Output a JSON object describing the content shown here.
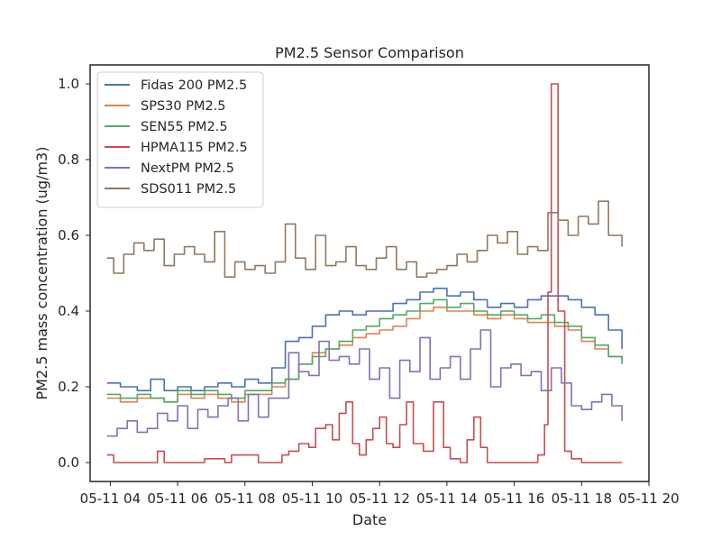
{
  "chart_data": {
    "type": "line",
    "title": "PM2.5 Sensor Comparison",
    "xlabel": "Date",
    "ylabel": "PM2.5 mass concentration (ug/m3)",
    "xlim": [
      3.4,
      20.0
    ],
    "ylim": [
      -0.05,
      1.05
    ],
    "x_ticks": [
      {
        "value": 4,
        "label": "05-11 04"
      },
      {
        "value": 6,
        "label": "05-11 06"
      },
      {
        "value": 8,
        "label": "05-11 08"
      },
      {
        "value": 10,
        "label": "05-11 10"
      },
      {
        "value": 12,
        "label": "05-11 12"
      },
      {
        "value": 14,
        "label": "05-11 14"
      },
      {
        "value": 16,
        "label": "05-11 16"
      },
      {
        "value": 18,
        "label": "05-11 18"
      },
      {
        "value": 20,
        "label": "05-11 20"
      }
    ],
    "y_ticks": [
      {
        "value": 0.0,
        "label": "0.0"
      },
      {
        "value": 0.2,
        "label": "0.2"
      },
      {
        "value": 0.4,
        "label": "0.4"
      },
      {
        "value": 0.6,
        "label": "0.6"
      },
      {
        "value": 0.8,
        "label": "0.8"
      },
      {
        "value": 1.0,
        "label": "1.0"
      }
    ],
    "grid": false,
    "legend": "top-left",
    "series": [
      {
        "name": "Fidas 200 PM2.5",
        "color": "#4c72b0",
        "x": [
          3.9,
          4.3,
          4.8,
          5.2,
          5.6,
          6.0,
          6.4,
          6.8,
          7.2,
          7.6,
          8.0,
          8.4,
          8.8,
          9.2,
          9.6,
          10.0,
          10.4,
          10.8,
          11.2,
          11.6,
          12.0,
          12.4,
          12.8,
          13.2,
          13.6,
          14.0,
          14.4,
          14.8,
          15.2,
          15.6,
          16.0,
          16.4,
          16.8,
          17.2,
          17.6,
          18.0,
          18.4,
          18.8,
          19.2
        ],
        "y": [
          0.21,
          0.2,
          0.19,
          0.22,
          0.19,
          0.2,
          0.19,
          0.2,
          0.21,
          0.2,
          0.22,
          0.21,
          0.25,
          0.32,
          0.33,
          0.36,
          0.39,
          0.4,
          0.39,
          0.4,
          0.4,
          0.42,
          0.43,
          0.45,
          0.46,
          0.44,
          0.45,
          0.43,
          0.41,
          0.42,
          0.41,
          0.43,
          0.44,
          0.44,
          0.43,
          0.41,
          0.39,
          0.35,
          0.3
        ]
      },
      {
        "name": "SPS30 PM2.5",
        "color": "#dd8452",
        "x": [
          3.9,
          4.3,
          4.8,
          5.2,
          5.6,
          6.0,
          6.4,
          6.8,
          7.2,
          7.6,
          8.0,
          8.4,
          8.8,
          9.2,
          9.6,
          10.0,
          10.4,
          10.8,
          11.2,
          11.6,
          12.0,
          12.4,
          12.8,
          13.2,
          13.6,
          14.0,
          14.4,
          14.8,
          15.2,
          15.6,
          16.0,
          16.4,
          16.8,
          17.2,
          17.6,
          18.0,
          18.4,
          18.8,
          19.2
        ],
        "y": [
          0.17,
          0.16,
          0.17,
          0.17,
          0.16,
          0.18,
          0.17,
          0.18,
          0.17,
          0.16,
          0.18,
          0.18,
          0.2,
          0.22,
          0.26,
          0.29,
          0.3,
          0.31,
          0.33,
          0.34,
          0.35,
          0.36,
          0.38,
          0.4,
          0.41,
          0.4,
          0.4,
          0.39,
          0.38,
          0.39,
          0.38,
          0.37,
          0.37,
          0.36,
          0.35,
          0.32,
          0.3,
          0.28,
          0.27
        ]
      },
      {
        "name": "SEN55 PM2.5",
        "color": "#55a868",
        "x": [
          3.9,
          4.3,
          4.8,
          5.2,
          5.6,
          6.0,
          6.4,
          6.8,
          7.2,
          7.6,
          8.0,
          8.4,
          8.8,
          9.2,
          9.6,
          10.0,
          10.4,
          10.8,
          11.2,
          11.6,
          12.0,
          12.4,
          12.8,
          13.2,
          13.6,
          14.0,
          14.4,
          14.8,
          15.2,
          15.6,
          16.0,
          16.4,
          16.8,
          17.2,
          17.6,
          18.0,
          18.4,
          18.8,
          19.2
        ],
        "y": [
          0.18,
          0.17,
          0.18,
          0.17,
          0.16,
          0.19,
          0.18,
          0.19,
          0.18,
          0.17,
          0.19,
          0.19,
          0.21,
          0.22,
          0.26,
          0.28,
          0.3,
          0.32,
          0.35,
          0.36,
          0.38,
          0.39,
          0.4,
          0.42,
          0.43,
          0.41,
          0.42,
          0.4,
          0.39,
          0.4,
          0.39,
          0.38,
          0.39,
          0.37,
          0.36,
          0.33,
          0.31,
          0.28,
          0.26
        ]
      },
      {
        "name": "HPMA115 PM2.5",
        "color": "#c44e52",
        "x": [
          3.9,
          4.1,
          5.2,
          5.4,
          5.6,
          6.6,
          6.8,
          7.4,
          7.6,
          7.8,
          8.4,
          8.6,
          9.0,
          9.1,
          9.3,
          9.6,
          9.9,
          10.1,
          10.4,
          10.6,
          10.8,
          11.0,
          11.2,
          11.4,
          11.6,
          11.8,
          12.0,
          12.2,
          12.4,
          12.6,
          12.8,
          13.0,
          13.3,
          13.6,
          13.9,
          14.1,
          14.4,
          14.6,
          14.8,
          15.0,
          15.2,
          15.4,
          15.6,
          15.8,
          16.0,
          16.4,
          16.7,
          16.9,
          17.0,
          17.1,
          17.3,
          17.5,
          17.7,
          18.0,
          18.4,
          18.8,
          19.2
        ],
        "y": [
          0.02,
          0.0,
          0.0,
          0.03,
          0.0,
          0.0,
          0.01,
          0.0,
          0.02,
          0.02,
          0.0,
          0.0,
          0.0,
          0.02,
          0.03,
          0.05,
          0.04,
          0.09,
          0.1,
          0.06,
          0.13,
          0.16,
          0.05,
          0.02,
          0.06,
          0.09,
          0.12,
          0.05,
          0.04,
          0.1,
          0.16,
          0.05,
          0.03,
          0.16,
          0.04,
          0.01,
          0.0,
          0.06,
          0.12,
          0.04,
          0.0,
          0.0,
          0.0,
          0.0,
          0.0,
          0.0,
          0.02,
          0.1,
          0.45,
          1.0,
          0.4,
          0.03,
          0.01,
          0.0,
          0.0,
          0.0,
          0.0
        ]
      },
      {
        "name": "NextPM PM2.5",
        "color": "#8172b3",
        "x": [
          3.9,
          4.2,
          4.5,
          4.8,
          5.1,
          5.4,
          5.7,
          6.0,
          6.3,
          6.6,
          6.9,
          7.2,
          7.5,
          7.8,
          8.1,
          8.4,
          8.7,
          9.0,
          9.3,
          9.6,
          9.9,
          10.2,
          10.5,
          10.8,
          11.1,
          11.4,
          11.7,
          12.0,
          12.3,
          12.6,
          12.9,
          13.2,
          13.5,
          13.8,
          14.1,
          14.4,
          14.7,
          15.0,
          15.3,
          15.6,
          15.9,
          16.2,
          16.5,
          16.8,
          17.1,
          17.4,
          17.7,
          18.0,
          18.3,
          18.6,
          18.9,
          19.2
        ],
        "y": [
          0.07,
          0.09,
          0.11,
          0.08,
          0.09,
          0.13,
          0.11,
          0.15,
          0.09,
          0.14,
          0.12,
          0.15,
          0.17,
          0.11,
          0.18,
          0.12,
          0.17,
          0.17,
          0.29,
          0.24,
          0.23,
          0.32,
          0.27,
          0.28,
          0.26,
          0.3,
          0.22,
          0.25,
          0.17,
          0.27,
          0.24,
          0.33,
          0.22,
          0.25,
          0.28,
          0.22,
          0.3,
          0.35,
          0.2,
          0.25,
          0.26,
          0.23,
          0.24,
          0.19,
          0.25,
          0.21,
          0.15,
          0.14,
          0.16,
          0.18,
          0.15,
          0.11
        ]
      },
      {
        "name": "SDS011 PM2.5",
        "color": "#937860",
        "x": [
          3.9,
          4.1,
          4.4,
          4.7,
          5.0,
          5.3,
          5.6,
          5.9,
          6.2,
          6.5,
          6.8,
          7.1,
          7.4,
          7.7,
          8.0,
          8.3,
          8.6,
          8.9,
          9.2,
          9.5,
          9.8,
          10.1,
          10.4,
          10.7,
          11.0,
          11.3,
          11.6,
          11.9,
          12.2,
          12.5,
          12.8,
          13.1,
          13.4,
          13.7,
          14.0,
          14.3,
          14.6,
          14.9,
          15.2,
          15.5,
          15.8,
          16.1,
          16.4,
          16.7,
          17.0,
          17.3,
          17.6,
          17.9,
          18.2,
          18.5,
          18.8,
          19.2
        ],
        "y": [
          0.54,
          0.5,
          0.55,
          0.58,
          0.56,
          0.59,
          0.52,
          0.55,
          0.57,
          0.55,
          0.53,
          0.61,
          0.49,
          0.53,
          0.51,
          0.52,
          0.5,
          0.53,
          0.63,
          0.54,
          0.51,
          0.6,
          0.52,
          0.53,
          0.57,
          0.52,
          0.51,
          0.54,
          0.57,
          0.51,
          0.53,
          0.49,
          0.5,
          0.51,
          0.52,
          0.55,
          0.53,
          0.56,
          0.6,
          0.58,
          0.61,
          0.55,
          0.57,
          0.56,
          0.66,
          0.64,
          0.6,
          0.65,
          0.63,
          0.69,
          0.6,
          0.57
        ]
      }
    ]
  }
}
